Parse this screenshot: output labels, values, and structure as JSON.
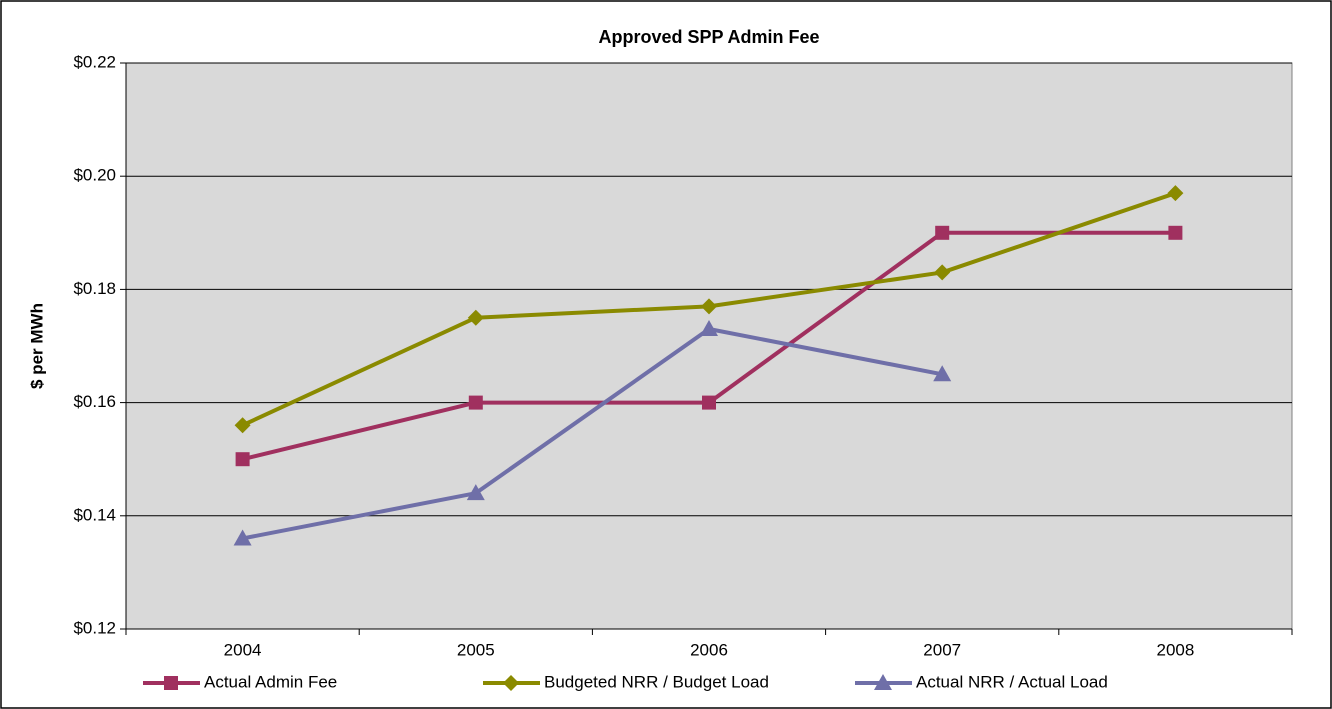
{
  "chart_data": {
    "type": "line",
    "title": "Approved SPP Admin Fee",
    "y_label": "$ per MWh",
    "categories": [
      "2004",
      "2005",
      "2006",
      "2007",
      "2008"
    ],
    "series": [
      {
        "name": "Actual Admin Fee",
        "color": "#a0305f",
        "marker": "square",
        "values": [
          0.15,
          0.16,
          0.16,
          0.19,
          0.19
        ]
      },
      {
        "name": "Budgeted NRR / Budget Load",
        "color": "#8a8a00",
        "marker": "diamond",
        "values": [
          0.156,
          0.175,
          0.177,
          0.183,
          0.197
        ]
      },
      {
        "name": "Actual NRR / Actual Load",
        "color": "#6f6fa8",
        "marker": "triangle",
        "values": [
          0.136,
          0.144,
          0.173,
          0.165,
          null
        ]
      }
    ],
    "ylim": [
      0.12,
      0.22
    ],
    "yticks": [
      {
        "value": 0.12,
        "label": "$0.12"
      },
      {
        "value": 0.14,
        "label": "$0.14"
      },
      {
        "value": 0.16,
        "label": "$0.16"
      },
      {
        "value": 0.18,
        "label": "$0.18"
      },
      {
        "value": 0.2,
        "label": "$0.20"
      },
      {
        "value": 0.22,
        "label": "$0.22"
      }
    ],
    "grid": true,
    "legend": "bottom"
  }
}
